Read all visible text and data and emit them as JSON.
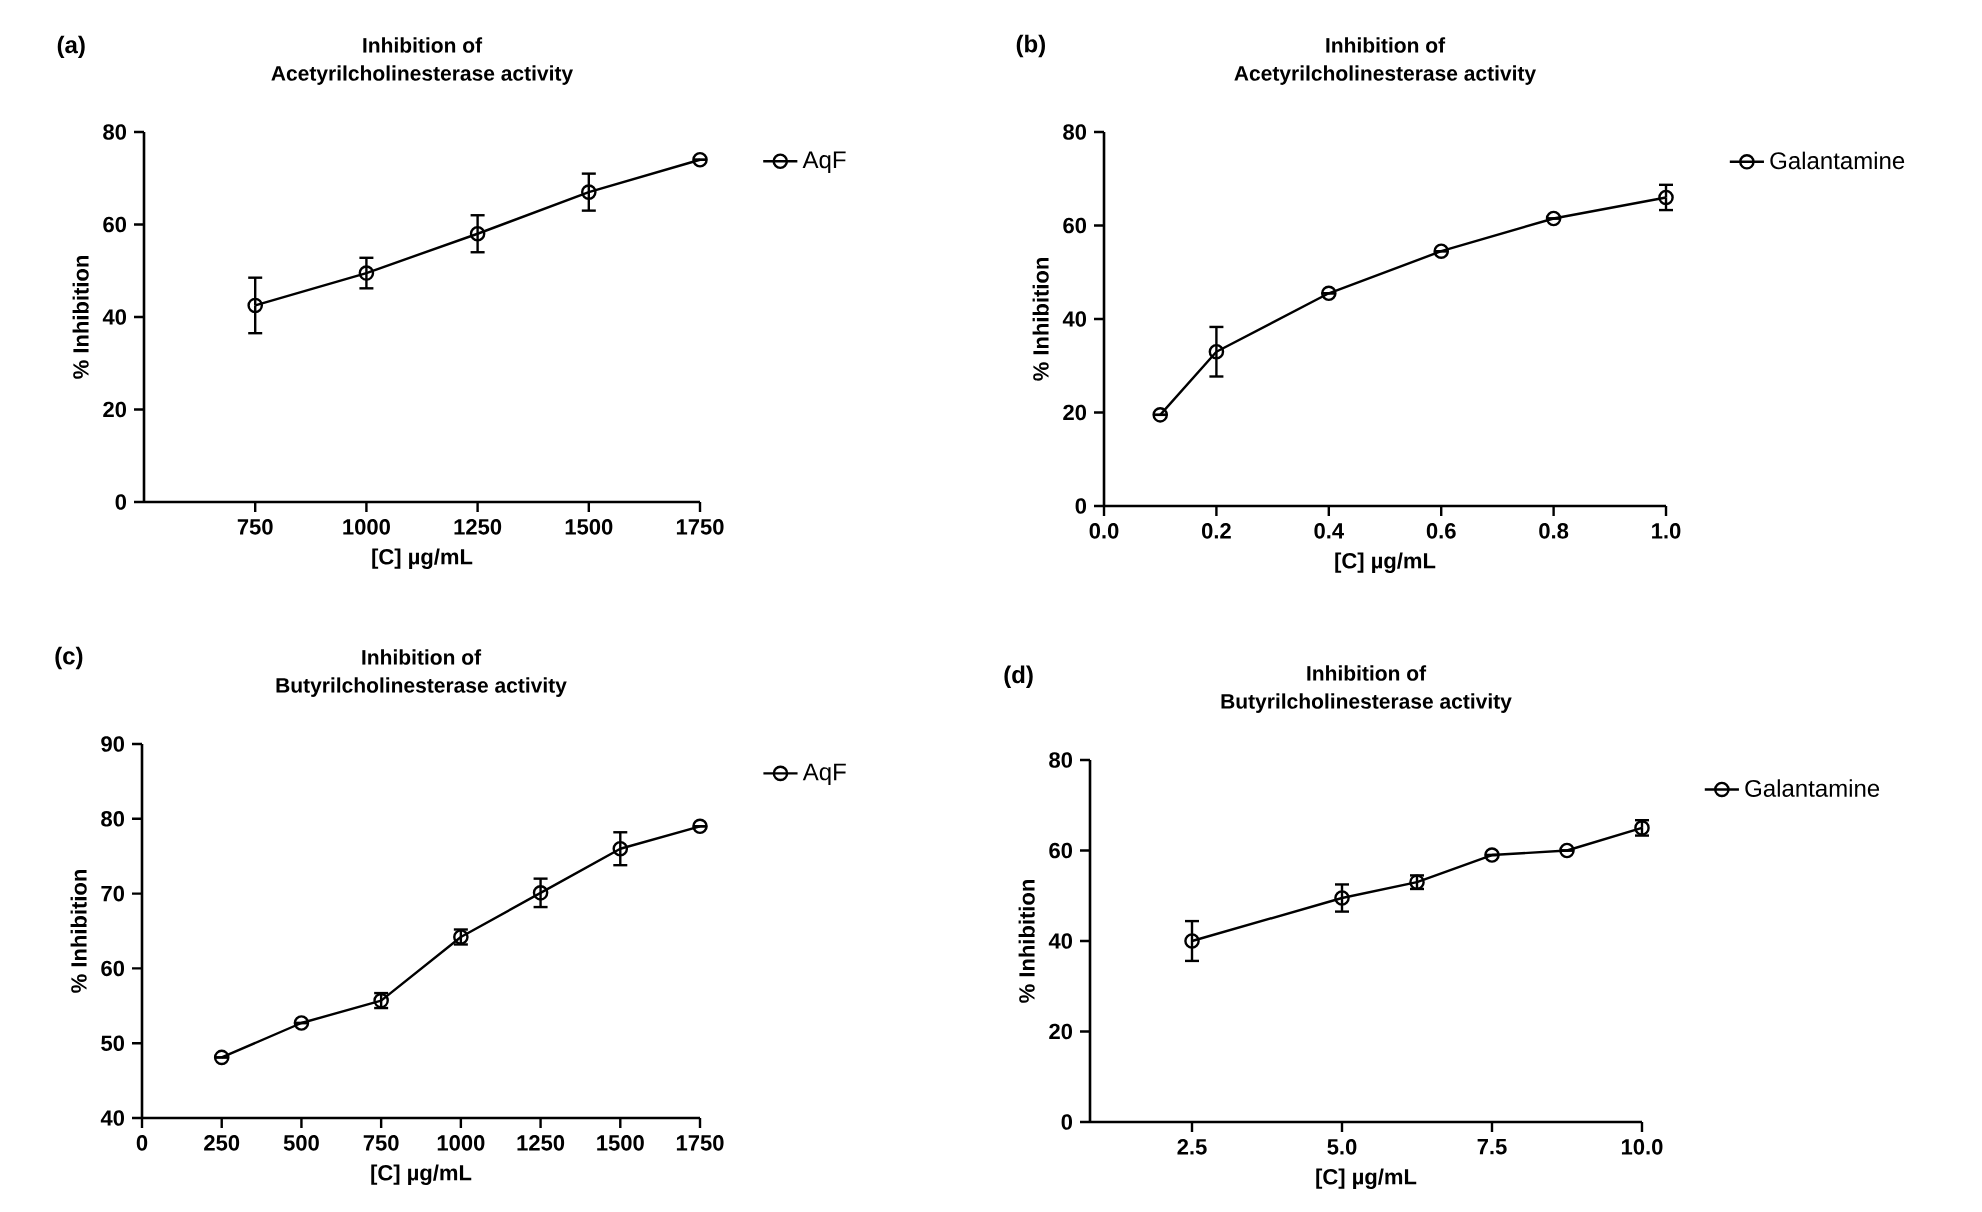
{
  "chart_data": [
    {
      "type": "line",
      "title": "Inhibition of",
      "subtitle": "Acetyrilcholinesterase activity",
      "annotations": [
        "(a)"
      ],
      "xlabel": "[C] µg/mL",
      "ylabel": "% Inhibition",
      "x": [
        750,
        1000,
        1250,
        1500,
        1750
      ],
      "xlim": [
        500,
        1750
      ],
      "xticks": [
        750,
        1000,
        1250,
        1500,
        1750
      ],
      "ylim": [
        0,
        80
      ],
      "yticks": [
        0,
        20,
        40,
        60,
        80
      ],
      "marker": "circle",
      "line_style": "solid",
      "legend": "top right",
      "series": [
        {
          "name": "AqF",
          "color": "#000000",
          "values": [
            42.5,
            49.5,
            58,
            67,
            74
          ],
          "errors": [
            6,
            3.3,
            4,
            4,
            null
          ]
        }
      ]
    },
    {
      "type": "line",
      "title": "Inhibition of",
      "subtitle": "Acetyrilcholinesterase activity",
      "annotations": [
        "(b)"
      ],
      "xlabel": "[C] µg/mL",
      "ylabel": "% Inhibition",
      "x": [
        0.1,
        0.2,
        0.4,
        0.6,
        0.8,
        1.0
      ],
      "xlim": [
        0,
        1
      ],
      "xticks": [
        {
          "value": 0,
          "label": "0.0"
        },
        0.2,
        0.4,
        0.6,
        0.8,
        {
          "value": 1,
          "label": "1.0"
        }
      ],
      "ylim": [
        0,
        80
      ],
      "yticks": [
        0,
        20,
        40,
        60,
        80
      ],
      "marker": "circle",
      "line_style": "solid",
      "legend": "top right",
      "series": [
        {
          "name": "Galantamine",
          "color": "#000000",
          "values": [
            19.5,
            33,
            45.5,
            54.5,
            61.5,
            66
          ],
          "errors": [
            null,
            5.3,
            null,
            null,
            null,
            2.7
          ]
        }
      ]
    },
    {
      "type": "line",
      "title": "Inhibition of",
      "subtitle": "Butyrilcholinesterase activity",
      "annotations": [
        "(c)"
      ],
      "xlabel": "[C] µg/mL",
      "ylabel": "% Inhibition",
      "x": [
        250,
        500,
        750,
        1000,
        1250,
        1500,
        1750
      ],
      "xlim": [
        0,
        1750
      ],
      "xticks": [
        0,
        250,
        500,
        750,
        1000,
        1250,
        1500,
        1750
      ],
      "ylim": [
        40,
        90
      ],
      "yticks": [
        40,
        50,
        60,
        70,
        80,
        90
      ],
      "marker": "circle",
      "line_style": "solid",
      "legend": "top right",
      "series": [
        {
          "name": "AqF",
          "color": "#000000",
          "values": [
            48.1,
            52.7,
            55.7,
            64.2,
            70.1,
            76,
            79
          ],
          "errors": [
            null,
            null,
            1,
            1,
            1.9,
            2.2,
            null
          ]
        }
      ]
    },
    {
      "type": "line",
      "title": "Inhibition of",
      "subtitle": "Butyrilcholinesterase activity",
      "annotations": [
        "(d)"
      ],
      "xlabel": "[C] µg/mL",
      "ylabel": "% Inhibition",
      "x": [
        2.5,
        5,
        6.25,
        7.5,
        8.75,
        10
      ],
      "xlim": [
        0.8,
        10
      ],
      "xticks": [
        2.5,
        {
          "value": 5,
          "label": "5.0"
        },
        7.5,
        {
          "value": 10,
          "label": "10.0"
        }
      ],
      "ylim": [
        0,
        80
      ],
      "yticks": [
        0,
        20,
        40,
        60,
        80
      ],
      "marker": "circle",
      "line_style": "solid",
      "legend": "top right",
      "series": [
        {
          "name": "Galantamine",
          "color": "#000000",
          "values": [
            40,
            49.5,
            53,
            59,
            60,
            65
          ],
          "errors": [
            4.4,
            3,
            1.5,
            null,
            null,
            1.7
          ]
        }
      ]
    }
  ]
}
